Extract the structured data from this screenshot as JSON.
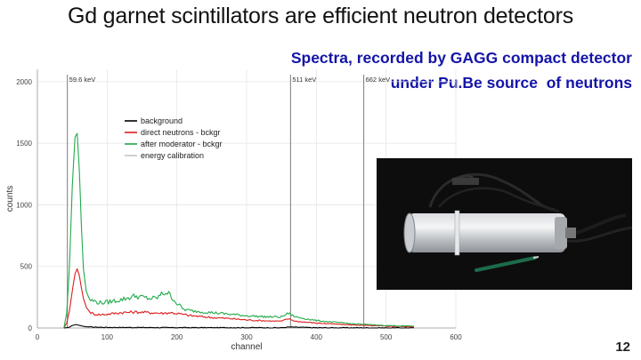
{
  "slide": {
    "title": "Gd garnet scintillators are efficient neutron detectors",
    "subtitle_line1": "Spectra, recorded by GAGG compact detector",
    "subtitle_line2": "under Pu.Be source  of neutrons",
    "page_number": "12"
  },
  "colors": {
    "subtitle": "#1414a8",
    "background": "#000000",
    "direct": "#dd1c1c",
    "moderator": "#22aa4a",
    "calibration": "#a0a0a0"
  },
  "chart_data": {
    "type": "line",
    "title": "",
    "xlabel": "channel",
    "ylabel": "counts",
    "xlim": [
      0,
      600
    ],
    "ylim": [
      0,
      2100
    ],
    "x_ticks": [
      0,
      100,
      200,
      300,
      400,
      500,
      600
    ],
    "y_ticks": [
      0,
      500,
      1000,
      1500,
      2000
    ],
    "grid": true,
    "legend_position": "top-left",
    "series": [
      {
        "name": "background",
        "color": "#000000",
        "x": [
          38,
          45,
          50,
          55,
          60,
          65,
          70,
          80,
          100,
          150,
          200,
          250,
          300,
          350,
          360,
          400,
          450,
          500,
          540
        ],
        "y": [
          0,
          5,
          20,
          28,
          22,
          15,
          10,
          7,
          5,
          4,
          3,
          3,
          3,
          2,
          8,
          2,
          2,
          1,
          1
        ]
      },
      {
        "name": "direct neutrons - bckgr",
        "color": "#dd1c1c",
        "x": [
          38,
          42,
          46,
          50,
          54,
          57,
          60,
          63,
          66,
          70,
          75,
          80,
          90,
          100,
          120,
          140,
          160,
          180,
          190,
          200,
          220,
          250,
          280,
          300,
          330,
          350,
          360,
          370,
          400,
          450,
          500,
          540
        ],
        "y": [
          0,
          40,
          140,
          300,
          440,
          480,
          430,
          330,
          240,
          170,
          130,
          115,
          108,
          112,
          125,
          130,
          125,
          120,
          125,
          118,
          100,
          85,
          75,
          65,
          58,
          55,
          75,
          55,
          40,
          25,
          15,
          10
        ]
      },
      {
        "name": "after moderator - bckgr",
        "color": "#22aa4a",
        "x": [
          38,
          42,
          46,
          50,
          54,
          57,
          60,
          63,
          66,
          70,
          75,
          80,
          90,
          100,
          120,
          140,
          160,
          170,
          180,
          185,
          190,
          200,
          210,
          220,
          240,
          260,
          280,
          300,
          330,
          350,
          360,
          370,
          400,
          450,
          500,
          540
        ],
        "y": [
          0,
          120,
          500,
          1150,
          1550,
          1580,
          1300,
          850,
          480,
          300,
          230,
          220,
          205,
          210,
          230,
          260,
          240,
          240,
          280,
          290,
          270,
          200,
          150,
          140,
          130,
          120,
          110,
          100,
          90,
          90,
          120,
          90,
          60,
          35,
          20,
          15
        ]
      },
      {
        "name": "energy calibration",
        "color": "#a0a0a0",
        "x": [],
        "y": []
      }
    ],
    "vertical_lines": [
      {
        "x": 43,
        "label": "59.6 keV"
      },
      {
        "x": 363,
        "label": "511 keV"
      },
      {
        "x": 468,
        "label": "662 keV"
      }
    ]
  }
}
